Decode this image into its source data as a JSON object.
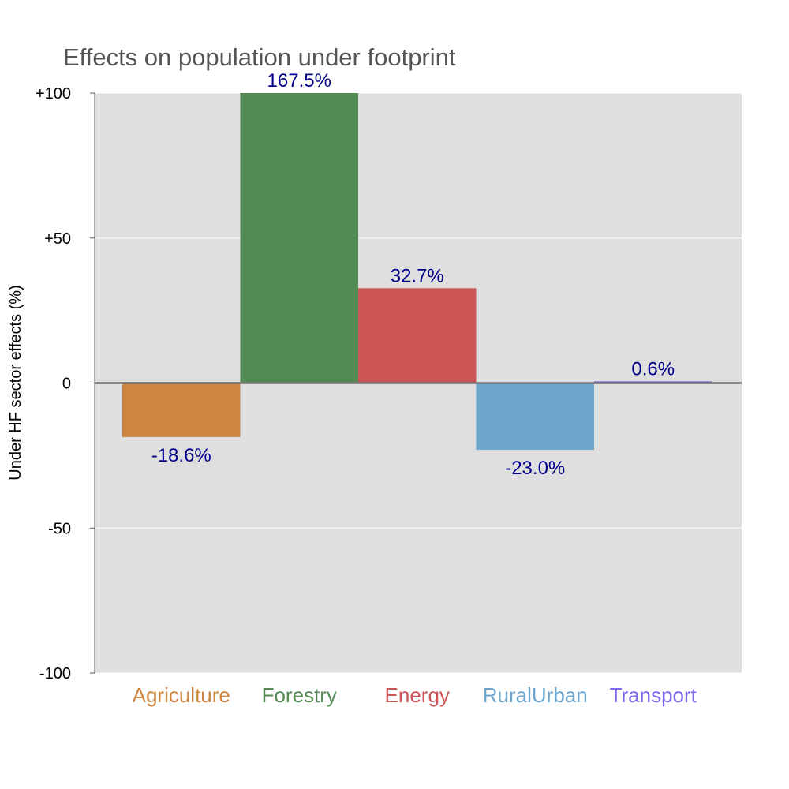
{
  "chart_data": {
    "type": "bar",
    "title": "Effects on population under footprint",
    "xlabel": "",
    "ylabel": "Under HF sector effects (%)",
    "ylim": [
      -100,
      100
    ],
    "yticks": [
      {
        "value": 100,
        "label": "+100"
      },
      {
        "value": 50,
        "label": "+50"
      },
      {
        "value": 0,
        "label": "0"
      },
      {
        "value": -50,
        "label": "-50"
      },
      {
        "value": -100,
        "label": "-100"
      }
    ],
    "categories": [
      "Agriculture",
      "Forestry",
      "Energy",
      "RuralUrban",
      "Transport"
    ],
    "values": [
      -18.6,
      167.5,
      32.7,
      -23.0,
      0.6
    ],
    "value_labels": [
      "-18.6%",
      "167.5%",
      "32.7%",
      "-23.0%",
      "0.6%"
    ],
    "colors": [
      "#CD853F",
      "#548B54",
      "#CD5555",
      "#6CA6CD",
      "#7B68EE"
    ],
    "label_color": "#00008B",
    "background": "#DFDFDF",
    "grid": true,
    "legend": "none"
  }
}
